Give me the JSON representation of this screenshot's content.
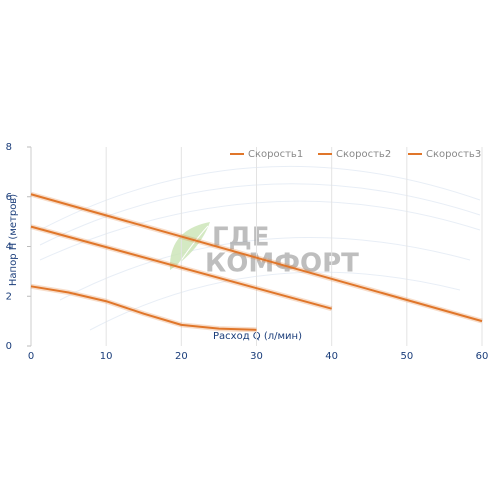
{
  "chart_data": {
    "type": "line",
    "x_label": "Расход Q (л/мин)",
    "y_label": "Напор Н (метров)",
    "series": [
      {
        "name": "Скорость1",
        "color": "#e0762a",
        "x": [
          0,
          5,
          10,
          15,
          20,
          25,
          30
        ],
        "values": [
          2.4,
          2.15,
          1.8,
          1.3,
          0.85,
          0.7,
          0.65
        ]
      },
      {
        "name": "Скорость2",
        "color": "#e0762a",
        "x": [
          0,
          40
        ],
        "values": [
          4.8,
          1.5
        ]
      },
      {
        "name": "Скорость3",
        "color": "#e0762a",
        "x": [
          0,
          60
        ],
        "values": [
          6.1,
          1.0
        ]
      }
    ],
    "xlim": [
      0,
      60
    ],
    "xticks": [
      0,
      10,
      20,
      30,
      40,
      50,
      60
    ],
    "ylim": [
      0,
      8
    ],
    "yticks": [
      0,
      2,
      4,
      6,
      8
    ],
    "grid": "x",
    "legend": "top-right"
  },
  "watermark": [
    "ГДЕ",
    "КОМФОРТ"
  ]
}
